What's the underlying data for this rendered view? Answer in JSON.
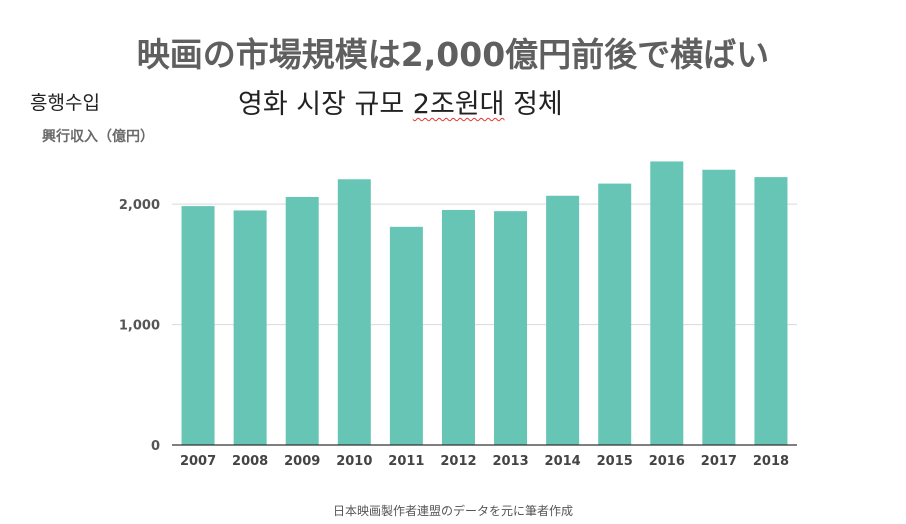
{
  "title": "映画の市場規模は2,000億円前後で横ばい",
  "korean_side_label": "흥행수입",
  "korean_subtitle": {
    "part1": "영화 시장 규모 ",
    "part2": "2조원대",
    "part3": " 정체"
  },
  "source": "日本映画製作者連盟のデータを元に筆者作成",
  "chart_data": {
    "type": "bar",
    "ylabel": "興行収入（億円）",
    "categories": [
      "2007",
      "2008",
      "2009",
      "2010",
      "2011",
      "2012",
      "2013",
      "2014",
      "2015",
      "2016",
      "2017",
      "2018"
    ],
    "values": [
      1984,
      1948,
      2060,
      2207,
      1812,
      1952,
      1942,
      2070,
      2171,
      2355,
      2286,
      2225
    ],
    "yticks": [
      0,
      1000,
      2000
    ],
    "ytick_labels": [
      "0",
      "1,000",
      "2,000"
    ],
    "ylim": [
      0,
      2450
    ],
    "grid": true,
    "bar_color": "#66c5b5",
    "grid_color": "#d9d9d9",
    "axis_color": "#333333"
  }
}
